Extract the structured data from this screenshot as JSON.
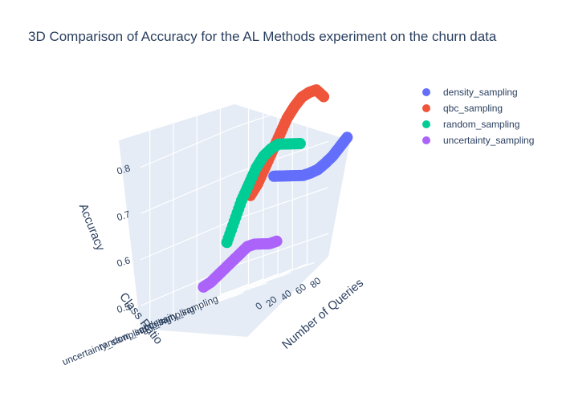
{
  "chart_data": {
    "type": "scatter3d",
    "title": "3D Comparison of Accuracy for the AL Methods experiment on the churn data",
    "legend_position": "top-right",
    "axes": {
      "x": {
        "title": "Number of Queries",
        "ticks": [
          "0",
          "20",
          "40",
          "60",
          "80"
        ],
        "range": [
          0,
          100
        ]
      },
      "y": {
        "title": "Class Ratio",
        "ticks": [
          "density_sampling",
          "qbc_sampling",
          "random_sampling",
          "uncertainty_sampling"
        ]
      },
      "z": {
        "title": "Accuracy",
        "ticks": [
          "0.5",
          "0.6",
          "0.7",
          "0.8"
        ],
        "range": [
          0.45,
          0.85
        ]
      }
    },
    "series": [
      {
        "name": "density_sampling",
        "color": "#636efa",
        "category": "density_sampling",
        "x": [
          0,
          10,
          20,
          30,
          40,
          50,
          60,
          70,
          80,
          90,
          100
        ],
        "y": [
          0.66,
          0.655,
          0.65,
          0.645,
          0.64,
          0.64,
          0.642,
          0.65,
          0.66,
          0.675,
          0.69
        ]
      },
      {
        "name": "qbc_sampling",
        "color": "#EF553B",
        "category": "qbc_sampling",
        "x": [
          0,
          10,
          20,
          30,
          40,
          50,
          60,
          70,
          80,
          90,
          100
        ],
        "y": [
          0.64,
          0.66,
          0.69,
          0.72,
          0.75,
          0.78,
          0.8,
          0.815,
          0.82,
          0.82,
          0.8
        ]
      },
      {
        "name": "random_sampling",
        "color": "#00cc96",
        "category": "random_sampling",
        "x": [
          0,
          10,
          20,
          30,
          40,
          50,
          60,
          70,
          80,
          90,
          100
        ],
        "y": [
          0.56,
          0.6,
          0.64,
          0.67,
          0.7,
          0.72,
          0.73,
          0.735,
          0.73,
          0.725,
          0.72
        ]
      },
      {
        "name": "uncertainty_sampling",
        "color": "#ab63fa",
        "category": "uncertainty_sampling",
        "x": [
          0,
          10,
          20,
          30,
          40,
          50,
          60,
          70,
          80,
          90,
          100
        ],
        "y": [
          0.485,
          0.49,
          0.5,
          0.51,
          0.52,
          0.53,
          0.54,
          0.54,
          0.535,
          0.53,
          0.53
        ]
      }
    ]
  }
}
